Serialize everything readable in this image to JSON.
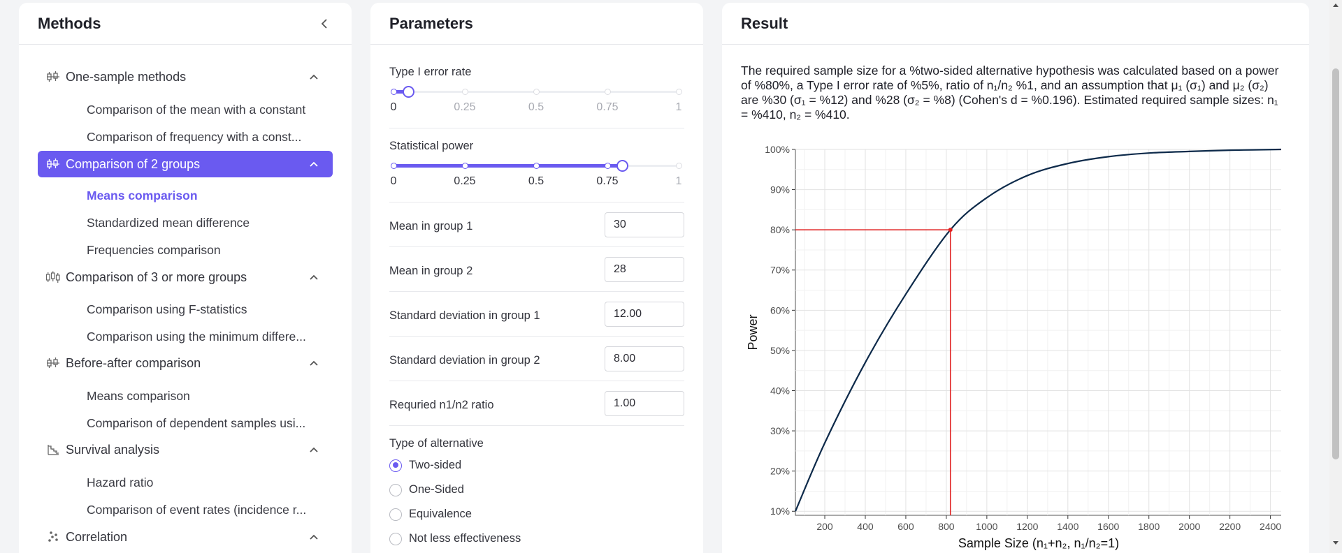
{
  "methods": {
    "title": "Methods",
    "groups": [
      {
        "label": "One-sample methods",
        "icon": "one-sample-icon",
        "items": [
          "Comparison of the mean with a constant",
          "Comparison of frequency with a const..."
        ]
      },
      {
        "label": "Comparison of 2 groups",
        "icon": "two-groups-icon",
        "items": [
          "Means comparison",
          "Standardized mean difference",
          "Frequencies comparison"
        ]
      },
      {
        "label": "Comparison of 3 or more groups",
        "icon": "three-groups-icon",
        "items": [
          "Comparison using F-statistics",
          "Comparison using the minimum differe..."
        ]
      },
      {
        "label": "Before-after comparison",
        "icon": "before-after-icon",
        "items": [
          "Means comparison",
          "Comparison of dependent samples usi..."
        ]
      },
      {
        "label": "Survival analysis",
        "icon": "survival-icon",
        "items": [
          "Hazard ratio",
          "Comparison of event rates (incidence r..."
        ]
      },
      {
        "label": "Correlation",
        "icon": "correlation-icon",
        "items": []
      }
    ]
  },
  "parameters": {
    "title": "Parameters",
    "type1_error": {
      "label": "Type I error rate",
      "ticks": [
        "0",
        "0.25",
        "0.5",
        "0.75",
        "1"
      ],
      "value": 0.05
    },
    "power": {
      "label": "Statistical power",
      "ticks": [
        "0",
        "0.25",
        "0.5",
        "0.75",
        "1"
      ],
      "value": 0.8
    },
    "fields": [
      {
        "label": "Mean in group 1",
        "value": "30"
      },
      {
        "label": "Mean in group 2",
        "value": "28"
      },
      {
        "label": "Standard deviation in group 1",
        "value": "12.00"
      },
      {
        "label": "Standard deviation in group 2",
        "value": "8.00"
      },
      {
        "label": "Requried n1/n2 ratio",
        "value": "1.00"
      }
    ],
    "alternative": {
      "label": "Type of alternative",
      "options": [
        "Two-sided",
        "One-Sided",
        "Equivalence",
        "Not less effectiveness"
      ],
      "selected": "Two-sided"
    }
  },
  "result": {
    "title": "Result",
    "text": "The required sample size for a %two-sided alternative hypothesis was calculated based on a power of %80%, a Type I error rate of %5%, ratio of n₁/n₂ %1, and an assumption that μ₁ (σ₁) and μ₂ (σ₂) are %30 (σ₁ = %12) and %28 (σ₂ = %8) (Cohen's d = %0.196). Estimated required sample sizes: n₁ = %410, n₂ = %410."
  },
  "chart_data": {
    "type": "line",
    "xlabel": "Sample Size (n₁+n₂, n₁/n₂=1)",
    "ylabel": "Power",
    "xlim": [
      55,
      2460
    ],
    "ylim": [
      0.09,
      1.0
    ],
    "x_ticks": [
      200,
      400,
      600,
      800,
      1000,
      1200,
      1400,
      1600,
      1800,
      2000,
      2200,
      2400
    ],
    "y_ticks": [
      "10%",
      "20%",
      "30%",
      "40%",
      "50%",
      "60%",
      "70%",
      "80%",
      "90%",
      "100%"
    ],
    "y_tick_values": [
      0.1,
      0.2,
      0.3,
      0.4,
      0.5,
      0.6,
      0.7,
      0.8,
      0.9,
      1.0
    ],
    "grid": true,
    "series": [
      {
        "x": [
          55,
          200,
          400,
          600,
          820,
          1000,
          1200,
          1400,
          1600,
          1800,
          2000,
          2200,
          2460
        ],
        "y": [
          0.1,
          0.27,
          0.47,
          0.64,
          0.8,
          0.88,
          0.935,
          0.965,
          0.982,
          0.991,
          0.995,
          0.998,
          1.0
        ]
      }
    ],
    "reference": {
      "x": 820,
      "y": 0.8,
      "color": "#e01e1e"
    },
    "line_color": "#0d2a4a"
  }
}
